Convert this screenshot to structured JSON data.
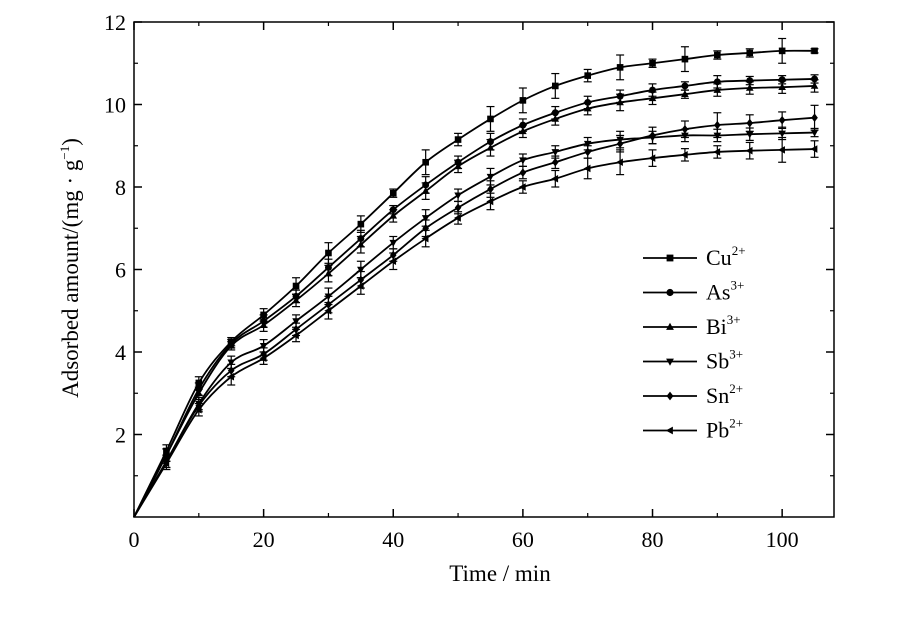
{
  "chart_data": {
    "type": "line",
    "title": "",
    "xlabel": "Time / min",
    "ylabel": "Adsorbed amount/(mg · g",
    "ylabel_sup": "−1",
    "ylabel_suffix": ")",
    "xlim": [
      0,
      108
    ],
    "ylim": [
      0,
      12
    ],
    "x_ticks": [
      0,
      20,
      40,
      60,
      80,
      100
    ],
    "y_ticks": [
      2,
      4,
      6,
      8,
      10,
      12
    ],
    "x_tick_labels": [
      "0",
      "20",
      "40",
      "60",
      "80",
      "100"
    ],
    "y_tick_labels": [
      "2",
      "4",
      "6",
      "8",
      "10",
      "12"
    ],
    "grid": false,
    "legend_position": "right",
    "x": [
      0,
      5,
      10,
      15,
      20,
      25,
      30,
      35,
      40,
      45,
      50,
      55,
      60,
      65,
      70,
      75,
      80,
      85,
      90,
      95,
      100,
      105
    ],
    "series": [
      {
        "name": "Cu",
        "charge": "2+",
        "marker": "square",
        "values": [
          0,
          1.6,
          3.25,
          4.25,
          4.9,
          5.6,
          6.4,
          7.1,
          7.85,
          8.6,
          9.15,
          9.65,
          10.1,
          10.45,
          10.7,
          10.9,
          11.0,
          11.1,
          11.2,
          11.25,
          11.3,
          11.3
        ],
        "errors": [
          0,
          0.15,
          0.15,
          0.1,
          0.15,
          0.2,
          0.25,
          0.2,
          0.1,
          0.3,
          0.15,
          0.3,
          0.3,
          0.3,
          0.15,
          0.3,
          0.1,
          0.3,
          0.1,
          0.1,
          0.3,
          0.05
        ]
      },
      {
        "name": "As",
        "charge": "3+",
        "marker": "circle",
        "values": [
          0,
          1.5,
          3.1,
          4.2,
          4.75,
          5.35,
          6.05,
          6.75,
          7.45,
          8.05,
          8.6,
          9.1,
          9.5,
          9.8,
          10.05,
          10.2,
          10.35,
          10.45,
          10.55,
          10.58,
          10.6,
          10.62
        ],
        "errors": [
          0,
          0.15,
          0.15,
          0.1,
          0.15,
          0.15,
          0.2,
          0.2,
          0.1,
          0.2,
          0.15,
          0.2,
          0.15,
          0.15,
          0.15,
          0.15,
          0.15,
          0.1,
          0.15,
          0.1,
          0.1,
          0.1
        ]
      },
      {
        "name": "Bi",
        "charge": "3+",
        "marker": "triangle-up",
        "values": [
          0,
          1.5,
          3.0,
          4.15,
          4.65,
          5.25,
          5.9,
          6.6,
          7.3,
          7.9,
          8.5,
          8.95,
          9.35,
          9.65,
          9.9,
          10.05,
          10.15,
          10.25,
          10.35,
          10.4,
          10.42,
          10.45
        ],
        "errors": [
          0,
          0.15,
          0.15,
          0.1,
          0.15,
          0.15,
          0.2,
          0.2,
          0.15,
          0.2,
          0.15,
          0.2,
          0.15,
          0.15,
          0.15,
          0.2,
          0.15,
          0.1,
          0.15,
          0.15,
          0.15,
          0.15
        ]
      },
      {
        "name": "Sb",
        "charge": "3+",
        "marker": "triangle-down",
        "values": [
          0,
          1.35,
          2.75,
          3.75,
          4.15,
          4.75,
          5.35,
          6.0,
          6.65,
          7.25,
          7.8,
          8.25,
          8.65,
          8.85,
          9.05,
          9.15,
          9.2,
          9.25,
          9.25,
          9.28,
          9.3,
          9.32
        ],
        "errors": [
          0,
          0.15,
          0.15,
          0.15,
          0.15,
          0.15,
          0.2,
          0.2,
          0.15,
          0.2,
          0.15,
          0.2,
          0.15,
          0.15,
          0.15,
          0.2,
          0.15,
          0.15,
          0.15,
          0.15,
          0.15,
          0.1
        ]
      },
      {
        "name": "Sn",
        "charge": "2+",
        "marker": "diamond",
        "values": [
          0,
          1.35,
          2.7,
          3.55,
          3.95,
          4.55,
          5.15,
          5.75,
          6.35,
          7.0,
          7.5,
          7.95,
          8.35,
          8.6,
          8.85,
          9.05,
          9.25,
          9.4,
          9.5,
          9.55,
          9.62,
          9.68
        ],
        "errors": [
          0,
          0.15,
          0.15,
          0.15,
          0.15,
          0.15,
          0.2,
          0.2,
          0.15,
          0.2,
          0.15,
          0.2,
          0.15,
          0.15,
          0.15,
          0.2,
          0.2,
          0.2,
          0.3,
          0.2,
          0.2,
          0.3
        ]
      },
      {
        "name": "Pb",
        "charge": "2+",
        "marker": "triangle-left",
        "values": [
          0,
          1.3,
          2.6,
          3.4,
          3.85,
          4.4,
          5.0,
          5.6,
          6.2,
          6.75,
          7.25,
          7.65,
          8.0,
          8.2,
          8.45,
          8.6,
          8.7,
          8.78,
          8.85,
          8.88,
          8.9,
          8.92
        ],
        "errors": [
          0,
          0.15,
          0.15,
          0.2,
          0.15,
          0.15,
          0.2,
          0.2,
          0.2,
          0.2,
          0.15,
          0.2,
          0.15,
          0.2,
          0.25,
          0.3,
          0.2,
          0.15,
          0.15,
          0.2,
          0.3,
          0.2
        ]
      }
    ]
  }
}
